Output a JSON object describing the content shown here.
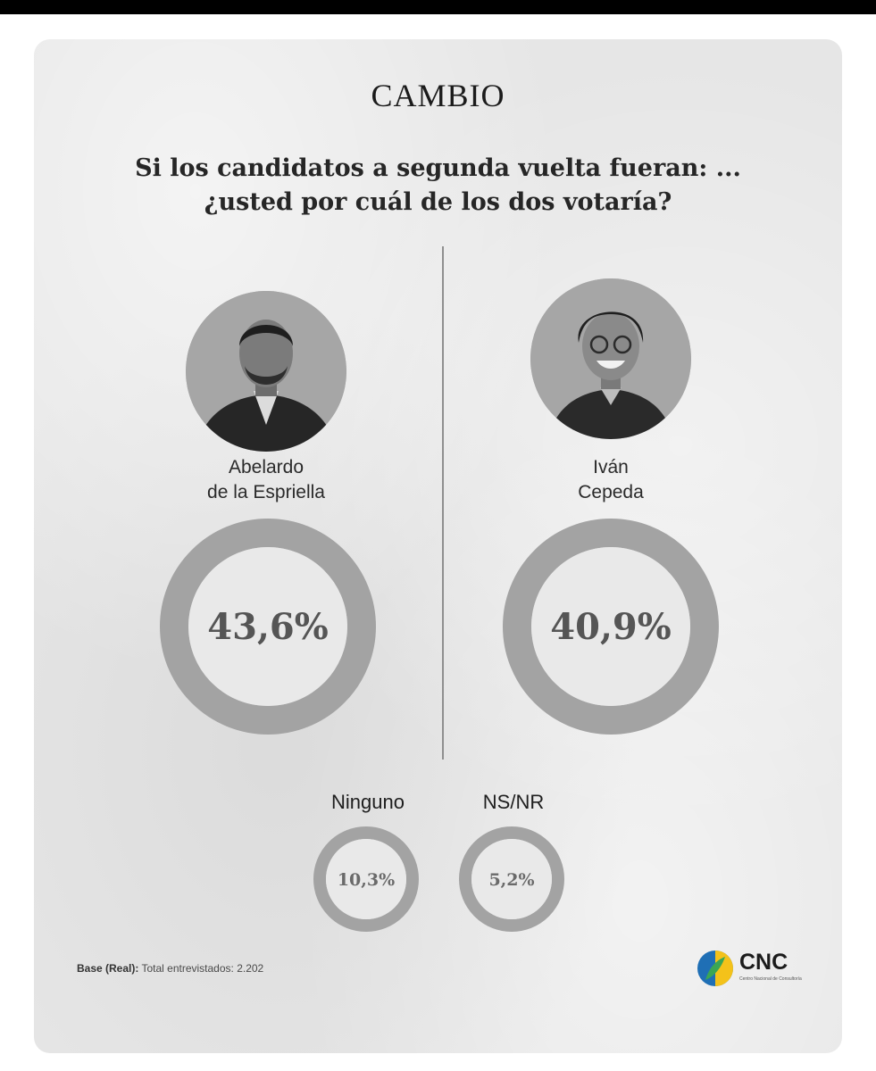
{
  "brand": "CAMBIO",
  "question": {
    "line1": "Si los candidatos a segunda vuelta fueran: ...",
    "line2": "¿usted por cuál de los dos votaría?"
  },
  "candidates": [
    {
      "name_line1": "Abelardo",
      "name_line2": "de la Espriella",
      "value_label": "43,6%"
    },
    {
      "name_line1": "Iván",
      "name_line2": "Cepeda",
      "value_label": "40,9%"
    }
  ],
  "others": [
    {
      "label": "Ninguno",
      "value_label": "10,3%"
    },
    {
      "label": "NS/NR",
      "value_label": "5,2%"
    }
  ],
  "footer": {
    "base_bold": "Base (Real):",
    "base_text": " Total entrevistados: 2.202",
    "logo_text": "CNC",
    "logo_subtext": "Centro Nacional de Consultoría"
  },
  "colors": {
    "accent": "#f0291b",
    "remainder": "#a3a3a3"
  },
  "chart_data": [
    {
      "type": "pie",
      "categories": [
        "Abelardo de la Espriella"
      ],
      "values": [
        43.6
      ],
      "unit": "%"
    },
    {
      "type": "pie",
      "categories": [
        "Iván Cepeda"
      ],
      "values": [
        40.9
      ],
      "unit": "%"
    },
    {
      "type": "pie",
      "categories": [
        "Ninguno"
      ],
      "values": [
        10.3
      ],
      "unit": "%"
    },
    {
      "type": "pie",
      "categories": [
        "NS/NR"
      ],
      "values": [
        5.2
      ],
      "unit": "%"
    }
  ]
}
